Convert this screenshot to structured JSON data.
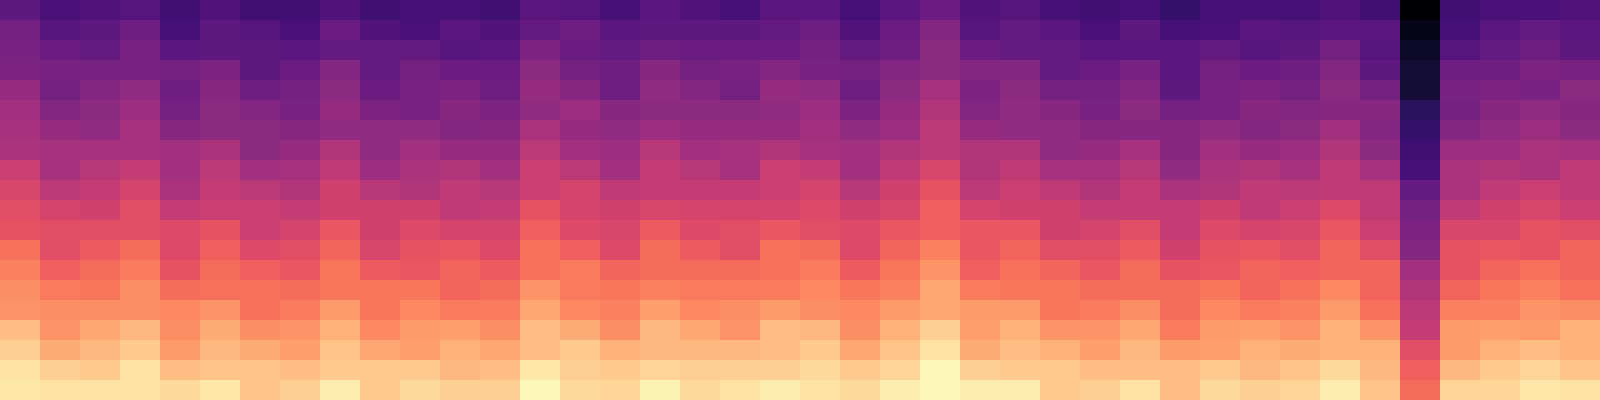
{
  "chart_data": {
    "type": "heatmap",
    "zlim": [
      -80,
      0
    ],
    "tick_labels": false,
    "cells": [
      [
        -57,
        -61,
        -60,
        -59,
        -63,
        -60,
        -63,
        -63,
        -60,
        -63,
        -62,
        -62,
        -63,
        -58,
        -59,
        -62,
        -58,
        -60,
        -62,
        -58,
        -58,
        -62,
        -58,
        -55,
        -60,
        -59,
        -62,
        -63,
        -62,
        -65,
        -62,
        -62,
        -62,
        -60,
        -63,
        -80,
        -63,
        -61,
        -61,
        -60
      ],
      [
        -53,
        -59,
        -57,
        -54,
        -62,
        -57,
        -59,
        -61,
        -55,
        -60,
        -61,
        -58,
        -60,
        -56,
        -54,
        -58,
        -57,
        -57,
        -57,
        -56,
        -54,
        -60,
        -55,
        -50,
        -59,
        -56,
        -58,
        -61,
        -57,
        -62,
        -61,
        -58,
        -59,
        -58,
        -58,
        -76,
        -62,
        -58,
        -56,
        -58
      ],
      [
        -52,
        -55,
        -56,
        -52,
        -58,
        -57,
        -57,
        -58,
        -56,
        -56,
        -56,
        -59,
        -58,
        -51,
        -55,
        -56,
        -54,
        -55,
        -55,
        -55,
        -53,
        -56,
        -54,
        -48,
        -55,
        -56,
        -56,
        -58,
        -58,
        -58,
        -56,
        -59,
        -57,
        -53,
        -59,
        -74,
        -59,
        -56,
        -54,
        -57
      ],
      [
        -51,
        -52,
        -52,
        -52,
        -53,
        -51,
        -57,
        -55,
        -50,
        -56,
        -53,
        -55,
        -55,
        -48,
        -53,
        -54,
        -49,
        -53,
        -52,
        -50,
        -52,
        -53,
        -50,
        -48,
        -50,
        -50,
        -56,
        -55,
        -52,
        -58,
        -53,
        -55,
        -54,
        -50,
        -57,
        -72,
        -54,
        -54,
        -51,
        -52
      ],
      [
        -46,
        -53,
        -50,
        -47,
        -54,
        -49,
        -54,
        -53,
        -48,
        -55,
        -52,
        -51,
        -54,
        -46,
        -49,
        -54,
        -47,
        -50,
        -53,
        -46,
        -47,
        -54,
        -48,
        -43,
        -51,
        -48,
        -53,
        -53,
        -50,
        -57,
        -52,
        -51,
        -53,
        -48,
        -53,
        -72,
        -52,
        -51,
        -52,
        -48
      ],
      [
        -44,
        -50,
        -48,
        -45,
        -53,
        -48,
        -50,
        -52,
        -46,
        -51,
        -52,
        -49,
        -51,
        -47,
        -45,
        -49,
        -48,
        -48,
        -48,
        -47,
        -45,
        -51,
        -46,
        -41,
        -50,
        -47,
        -49,
        -52,
        -48,
        -53,
        -52,
        -49,
        -50,
        -49,
        -49,
        -67,
        -53,
        -49,
        -47,
        -49
      ],
      [
        -43,
        -46,
        -47,
        -43,
        -49,
        -48,
        -48,
        -49,
        -47,
        -47,
        -47,
        -50,
        -49,
        -42,
        -46,
        -47,
        -45,
        -46,
        -46,
        -46,
        -44,
        -47,
        -45,
        -39,
        -46,
        -47,
        -47,
        -49,
        -49,
        -49,
        -47,
        -50,
        -48,
        -44,
        -50,
        -65,
        -50,
        -47,
        -45,
        -48
      ],
      [
        -42,
        -43,
        -43,
        -43,
        -44,
        -42,
        -48,
        -46,
        -41,
        -47,
        -44,
        -46,
        -46,
        -39,
        -44,
        -45,
        -40,
        -44,
        -43,
        -41,
        -43,
        -44,
        -41,
        -39,
        -41,
        -41,
        -47,
        -46,
        -43,
        -49,
        -44,
        -46,
        -45,
        -41,
        -48,
        -63,
        -45,
        -45,
        -42,
        -43
      ],
      [
        -36,
        -43,
        -40,
        -37,
        -44,
        -39,
        -44,
        -43,
        -38,
        -45,
        -42,
        -41,
        -44,
        -36,
        -39,
        -44,
        -37,
        -40,
        -43,
        -36,
        -37,
        -44,
        -38,
        -33,
        -41,
        -38,
        -43,
        -43,
        -40,
        -47,
        -42,
        -41,
        -43,
        -38,
        -43,
        -62,
        -42,
        -41,
        -42,
        -38
      ],
      [
        -33,
        -39,
        -37,
        -34,
        -42,
        -37,
        -39,
        -41,
        -35,
        -40,
        -41,
        -38,
        -40,
        -36,
        -34,
        -38,
        -37,
        -37,
        -37,
        -36,
        -34,
        -40,
        -35,
        -30,
        -39,
        -36,
        -38,
        -41,
        -37,
        -42,
        -41,
        -38,
        -39,
        -38,
        -38,
        -56,
        -42,
        -38,
        -36,
        -38
      ],
      [
        -31,
        -34,
        -35,
        -31,
        -37,
        -36,
        -36,
        -37,
        -35,
        -35,
        -35,
        -38,
        -37,
        -30,
        -34,
        -35,
        -33,
        -34,
        -34,
        -34,
        -32,
        -35,
        -33,
        -27,
        -34,
        -35,
        -35,
        -37,
        -37,
        -37,
        -35,
        -38,
        -36,
        -32,
        -38,
        -53,
        -38,
        -35,
        -33,
        -36
      ],
      [
        -30,
        -31,
        -31,
        -31,
        -32,
        -30,
        -36,
        -34,
        -29,
        -35,
        -32,
        -34,
        -34,
        -27,
        -32,
        -33,
        -28,
        -32,
        -31,
        -29,
        -31,
        -32,
        -29,
        -27,
        -29,
        -29,
        -35,
        -34,
        -31,
        -37,
        -32,
        -34,
        -33,
        -29,
        -36,
        -51,
        -33,
        -33,
        -30,
        -31
      ],
      [
        -24,
        -31,
        -28,
        -25,
        -32,
        -27,
        -32,
        -31,
        -26,
        -33,
        -30,
        -29,
        -32,
        -24,
        -27,
        -32,
        -25,
        -28,
        -31,
        -24,
        -25,
        -32,
        -26,
        -21,
        -29,
        -26,
        -31,
        -31,
        -28,
        -35,
        -30,
        -29,
        -31,
        -26,
        -31,
        -50,
        -30,
        -29,
        -30,
        -26
      ],
      [
        -21,
        -27,
        -25,
        -22,
        -30,
        -25,
        -27,
        -29,
        -23,
        -28,
        -29,
        -26,
        -28,
        -24,
        -22,
        -26,
        -25,
        -25,
        -25,
        -24,
        -22,
        -28,
        -23,
        -18,
        -27,
        -24,
        -26,
        -29,
        -25,
        -30,
        -29,
        -26,
        -27,
        -26,
        -26,
        -44,
        -30,
        -26,
        -24,
        -26
      ],
      [
        -19,
        -22,
        -23,
        -19,
        -25,
        -24,
        -24,
        -25,
        -23,
        -23,
        -23,
        -26,
        -25,
        -18,
        -22,
        -23,
        -21,
        -22,
        -22,
        -22,
        -20,
        -23,
        -21,
        -15,
        -22,
        -23,
        -23,
        -25,
        -25,
        -25,
        -23,
        -26,
        -24,
        -20,
        -26,
        -41,
        -26,
        -23,
        -21,
        -24
      ],
      [
        -18,
        -19,
        -19,
        -19,
        -20,
        -18,
        -24,
        -22,
        -17,
        -23,
        -20,
        -22,
        -22,
        -15,
        -20,
        -21,
        -16,
        -20,
        -19,
        -17,
        -19,
        -20,
        -17,
        -15,
        -17,
        -17,
        -23,
        -22,
        -19,
        -25,
        -20,
        -22,
        -21,
        -17,
        -24,
        -39,
        -21,
        -21,
        -18,
        -19
      ],
      [
        -11,
        -18,
        -15,
        -12,
        -19,
        -14,
        -19,
        -18,
        -13,
        -20,
        -17,
        -16,
        -19,
        -11,
        -14,
        -19,
        -12,
        -15,
        -18,
        -11,
        -12,
        -19,
        -13,
        -8,
        -16,
        -13,
        -18,
        -18,
        -15,
        -22,
        -17,
        -16,
        -18,
        -13,
        -18,
        -37,
        -17,
        -16,
        -17,
        -13
      ],
      [
        -8,
        -14,
        -12,
        -9,
        -17,
        -12,
        -14,
        -16,
        -10,
        -15,
        -16,
        -13,
        -15,
        -11,
        -9,
        -13,
        -12,
        -12,
        -12,
        -11,
        -9,
        -15,
        -10,
        -5,
        -14,
        -11,
        -13,
        -16,
        -12,
        -17,
        -16,
        -13,
        -14,
        -13,
        -13,
        -31,
        -17,
        -13,
        -11,
        -13
      ],
      [
        -5,
        -8,
        -9,
        -5,
        -11,
        -10,
        -10,
        -11,
        -9,
        -9,
        -9,
        -12,
        -11,
        -4,
        -8,
        -9,
        -7,
        -8,
        -8,
        -8,
        -6,
        -9,
        -7,
        -1,
        -8,
        -9,
        -9,
        -11,
        -11,
        -11,
        -9,
        -12,
        -10,
        -6,
        -12,
        -27,
        -12,
        -9,
        -7,
        -10
      ],
      [
        -4,
        -5,
        -5,
        -5,
        -6,
        -4,
        -10,
        -8,
        -3,
        -9,
        -6,
        -8,
        -8,
        -1,
        -6,
        -7,
        -2,
        -6,
        -5,
        -3,
        -5,
        -6,
        -3,
        -1,
        -3,
        -3,
        -9,
        -8,
        -5,
        -11,
        -6,
        -8,
        -7,
        -3,
        -10,
        -25,
        -7,
        -7,
        -4,
        -5
      ]
    ]
  }
}
